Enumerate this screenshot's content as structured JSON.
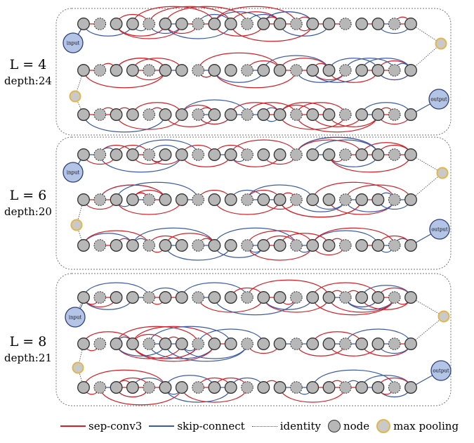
{
  "panels": [
    {
      "layers": "L = 4",
      "depth": "depth:24",
      "input_label": "input",
      "output_label": "output"
    },
    {
      "layers": "L = 6",
      "depth": "depth:20",
      "input_label": "input",
      "output_label": "output"
    },
    {
      "layers": "L = 8",
      "depth": "depth:21",
      "input_label": "input",
      "output_label": "output"
    }
  ],
  "legend": {
    "sep_conv": "sep-conv3",
    "skip": "skip-connect",
    "identity": "identity",
    "node": "node",
    "pool": "max pooling"
  },
  "colors": {
    "sep_conv": "#d41f26",
    "skip": "#3b5ba9",
    "node_fill": "#b7b7b7",
    "node_stroke": "#333333",
    "pool_ring": "#e3b64a",
    "io_fill": "#b4c4e6",
    "io_stroke": "#2f3f7a"
  }
}
